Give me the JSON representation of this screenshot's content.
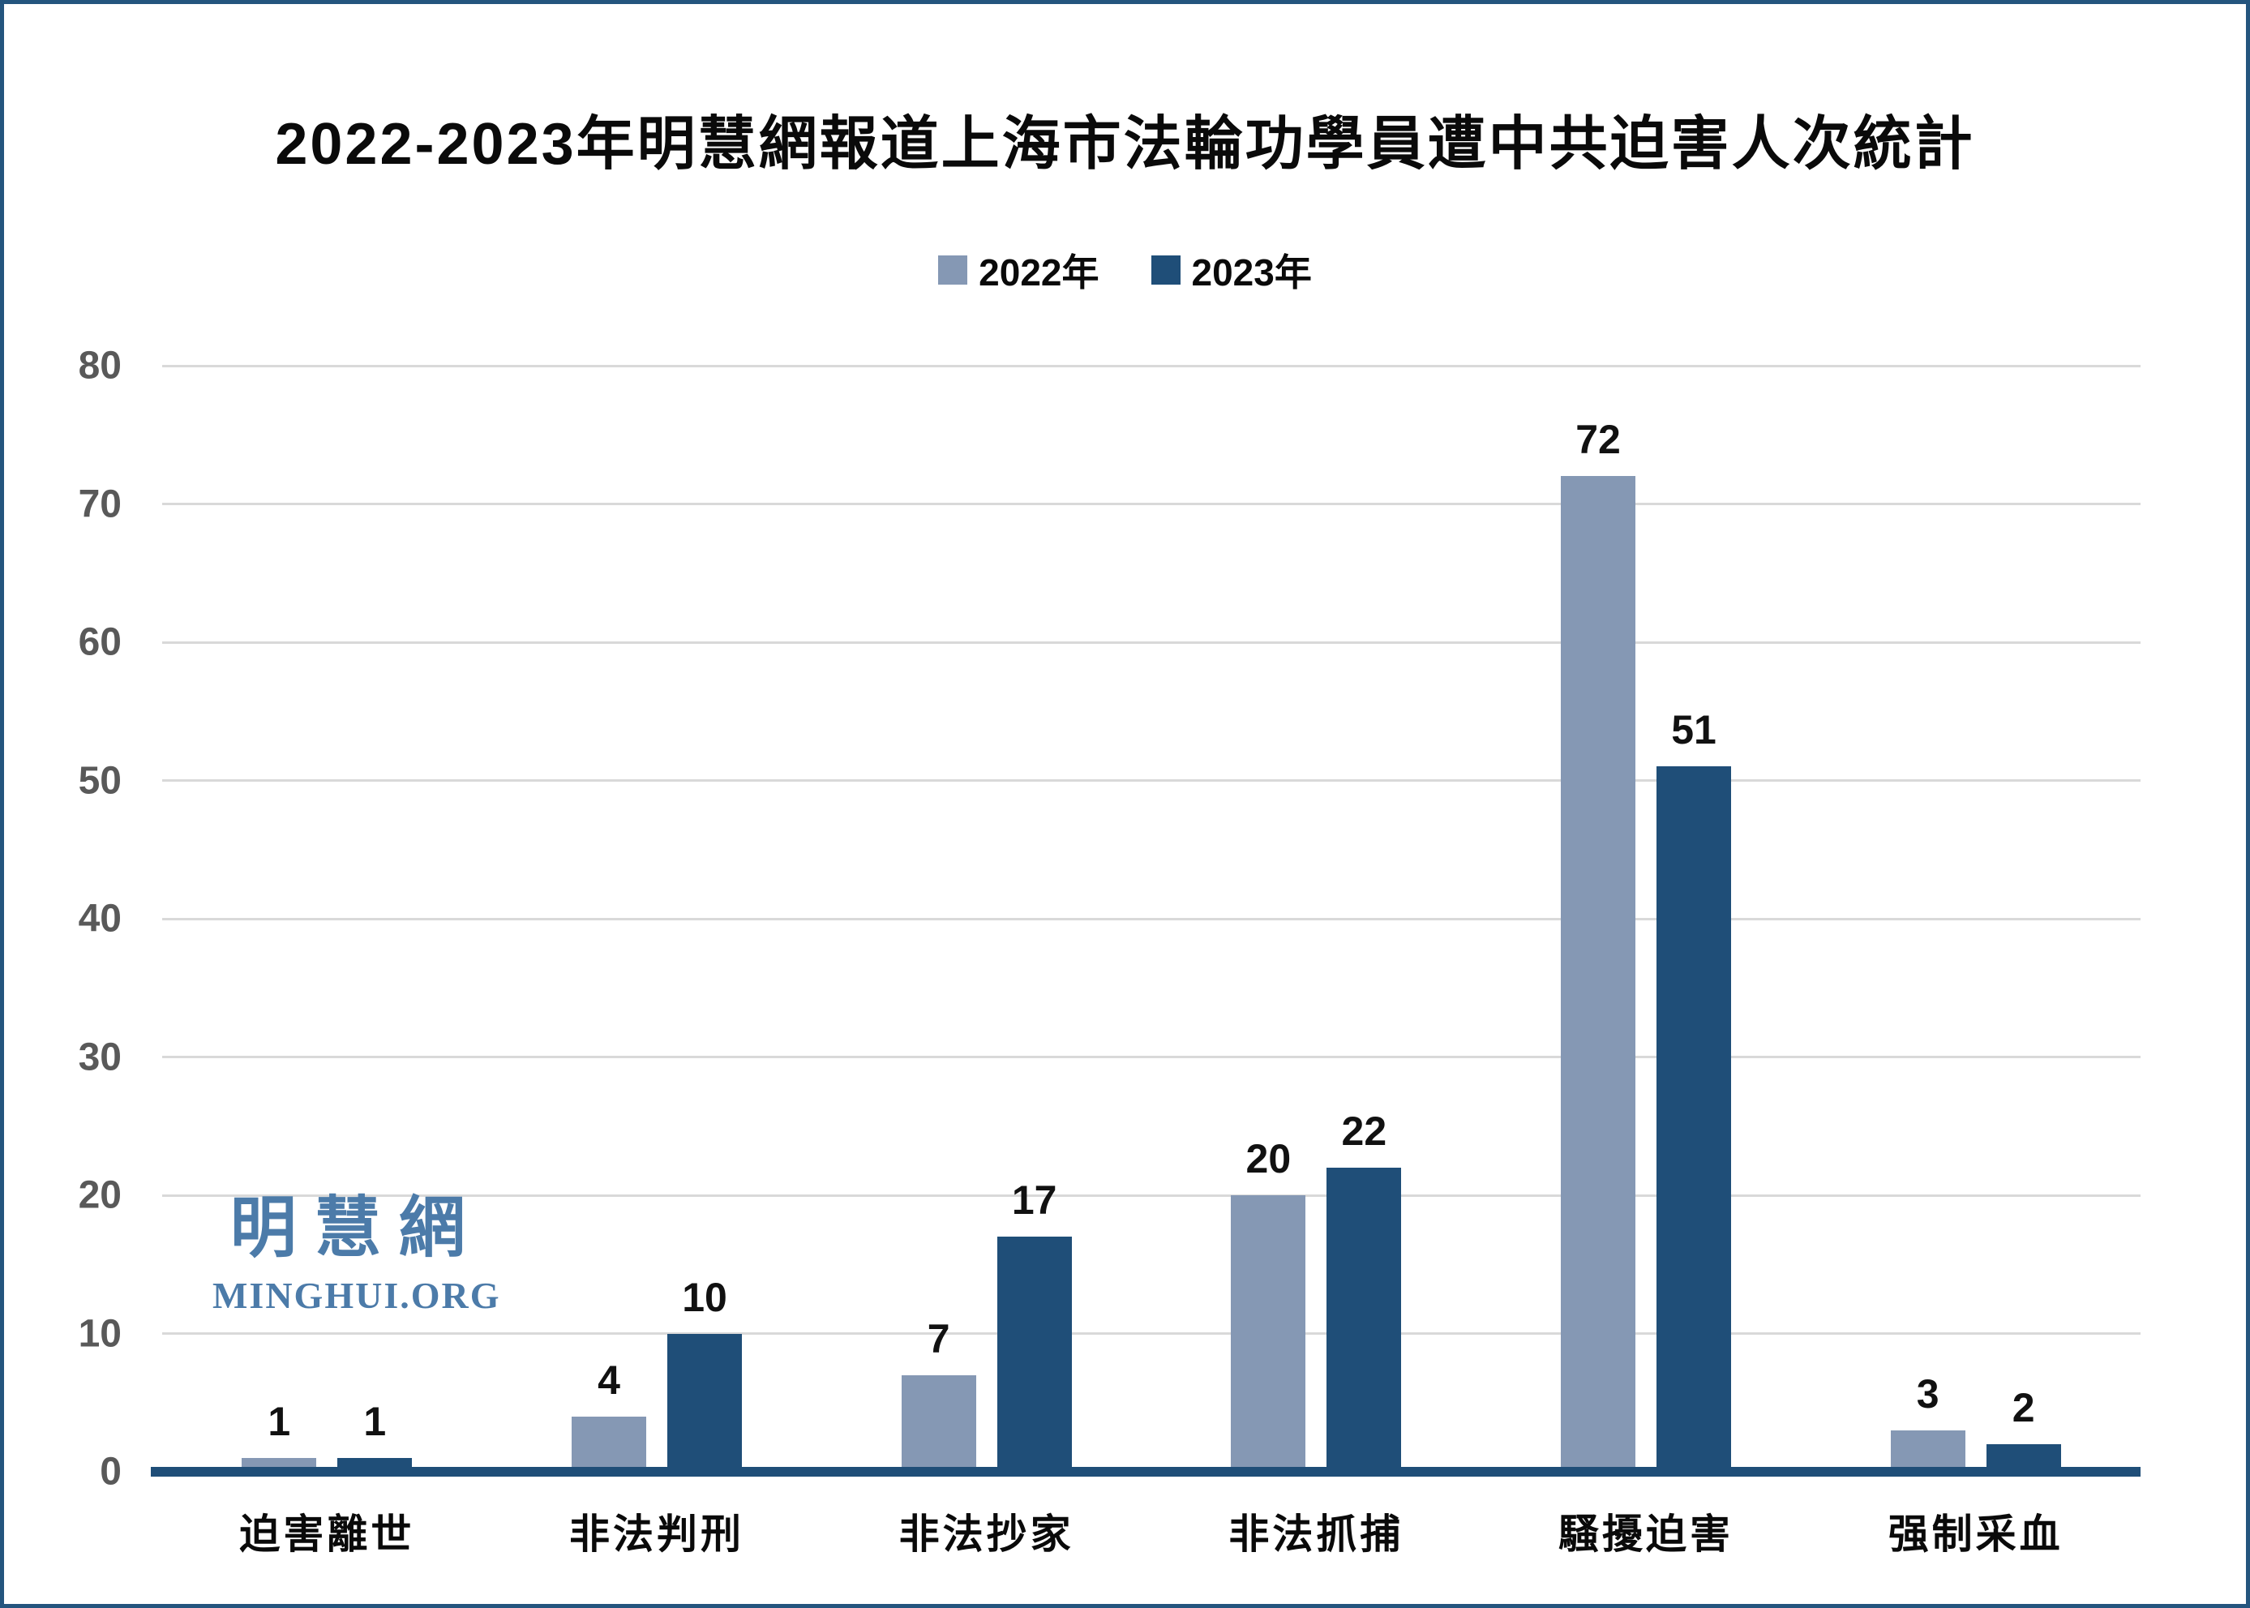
{
  "title": "2022-2023年明慧網報道上海市法輪功學員遭中共迫害人次統計",
  "watermark": {
    "cjk": "明慧網",
    "latin": "MINGHUI.ORG"
  },
  "colors": {
    "series_2022": "#8598B4",
    "series_2023": "#1F4E78",
    "axis_line": "#1F4E78",
    "gridline": "#D9D9D9",
    "tick_text": "#595959",
    "frame_border": "#24557E",
    "watermark": "#4C7BA9"
  },
  "chart_data": {
    "type": "bar",
    "title": "2022-2023年明慧網報道上海市法輪功學員遭中共迫害人次統計",
    "categories": [
      "迫害離世",
      "非法判刑",
      "非法抄家",
      "非法抓捕",
      "騷擾迫害",
      "强制采血"
    ],
    "series": [
      {
        "name": "2022年",
        "color": "#8598B4",
        "values": [
          1,
          4,
          7,
          20,
          72,
          3
        ]
      },
      {
        "name": "2023年",
        "color": "#1F4E78",
        "values": [
          1,
          10,
          17,
          22,
          51,
          2
        ]
      }
    ],
    "xlabel": "",
    "ylabel": "",
    "ylim": [
      0,
      80
    ],
    "yticks": [
      0,
      10,
      20,
      30,
      40,
      50,
      60,
      70,
      80
    ],
    "grid": true,
    "legend_position": "top-center",
    "value_labels": true
  }
}
